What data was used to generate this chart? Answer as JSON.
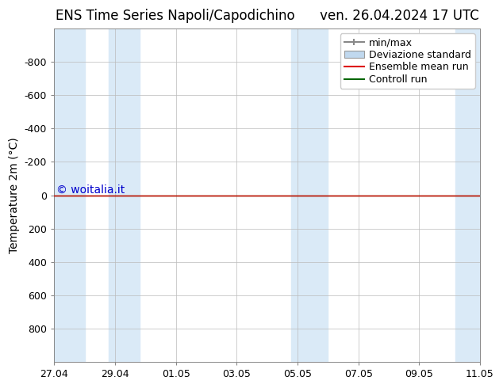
{
  "title_left": "ENS Time Series Napoli/Capodichino",
  "title_right": "ven. 26.04.2024 17 UTC",
  "ylabel": "Temperature 2m (°C)",
  "ylim": [
    -1000,
    1000
  ],
  "yticks": [
    -800,
    -600,
    -400,
    -200,
    0,
    200,
    400,
    600,
    800
  ],
  "xtick_labels": [
    "27.04",
    "29.04",
    "01.05",
    "03.05",
    "05.05",
    "07.05",
    "09.05",
    "11.05"
  ],
  "xtick_positions": [
    0,
    2,
    4,
    6,
    8,
    10,
    12,
    14
  ],
  "xlim": [
    0,
    14
  ],
  "watermark": "© woitalia.it",
  "watermark_color": "#0000cc",
  "bg_color": "#ffffff",
  "shade_color": "#daeaf7",
  "shade_spans": [
    [
      0,
      1.0
    ],
    [
      1.8,
      2.8
    ],
    [
      7.8,
      9.0
    ],
    [
      13.2,
      14.0
    ]
  ],
  "ensemble_mean_color": "#dd0000",
  "control_run_color": "#006600",
  "std_fill_color": "#c0d8ee",
  "minmax_color": "#888888",
  "legend_entries": [
    "min/max",
    "Deviazione standard",
    "Ensemble mean run",
    "Controll run"
  ],
  "title_fontsize": 12,
  "axis_fontsize": 10,
  "tick_fontsize": 9,
  "watermark_fontsize": 10,
  "legend_fontsize": 9
}
